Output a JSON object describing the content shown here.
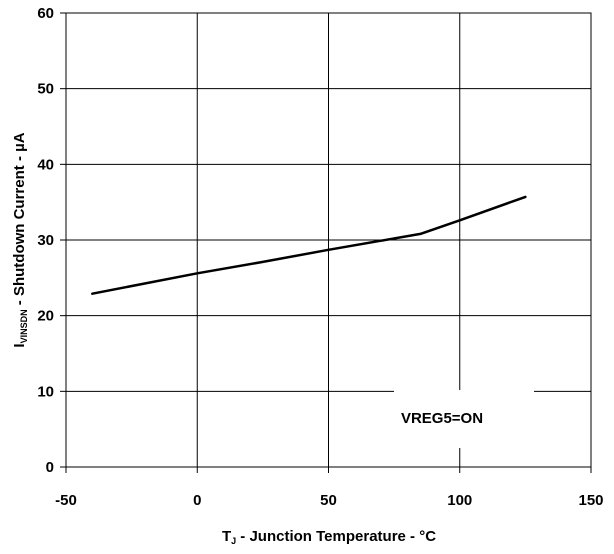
{
  "chart_data": {
    "type": "line",
    "title": "",
    "xlabel_main": "T",
    "xlabel_sub": "J",
    "xlabel_rest": " - Junction Temperature - °C",
    "ylabel_main": "I",
    "ylabel_sub": "VINSDN",
    "ylabel_rest": " - Shutdown Current - µA",
    "xlim": [
      -50,
      150
    ],
    "ylim": [
      0,
      60
    ],
    "x_ticks": [
      -50,
      0,
      50,
      100,
      150
    ],
    "y_ticks": [
      0,
      10,
      20,
      30,
      40,
      50,
      60
    ],
    "grid": true,
    "annotation": "VREG5=ON",
    "series": [
      {
        "x": [
          -40,
          0,
          25,
          50,
          85,
          100,
          125
        ],
        "y": [
          22.9,
          25.6,
          27.1,
          28.7,
          30.8,
          32.6,
          35.7
        ]
      }
    ]
  }
}
